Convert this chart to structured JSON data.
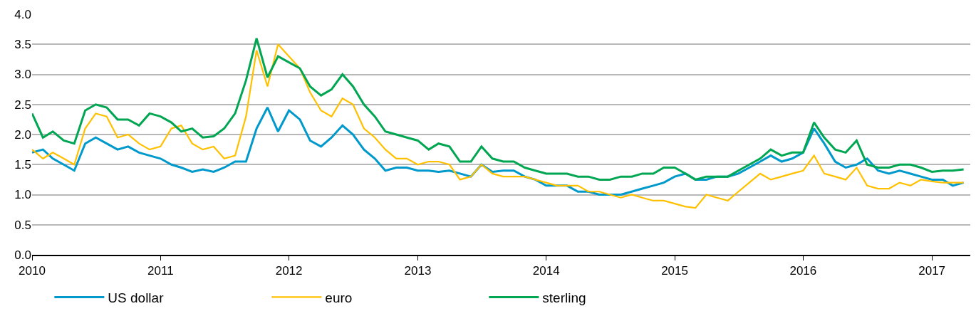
{
  "chart_data": {
    "type": "line",
    "x": [
      "2010-01",
      "2010-02",
      "2010-03",
      "2010-04",
      "2010-05",
      "2010-06",
      "2010-07",
      "2010-08",
      "2010-09",
      "2010-10",
      "2010-11",
      "2010-12",
      "2011-01",
      "2011-02",
      "2011-03",
      "2011-04",
      "2011-05",
      "2011-06",
      "2011-07",
      "2011-08",
      "2011-09",
      "2011-10",
      "2011-11",
      "2011-12",
      "2012-01",
      "2012-02",
      "2012-03",
      "2012-04",
      "2012-05",
      "2012-06",
      "2012-07",
      "2012-08",
      "2012-09",
      "2012-10",
      "2012-11",
      "2012-12",
      "2013-01",
      "2013-02",
      "2013-03",
      "2013-04",
      "2013-05",
      "2013-06",
      "2013-07",
      "2013-08",
      "2013-09",
      "2013-10",
      "2013-11",
      "2013-12",
      "2014-01",
      "2014-02",
      "2014-03",
      "2014-04",
      "2014-05",
      "2014-06",
      "2014-07",
      "2014-08",
      "2014-09",
      "2014-10",
      "2014-11",
      "2014-12",
      "2015-01",
      "2015-02",
      "2015-03",
      "2015-04",
      "2015-05",
      "2015-06",
      "2015-07",
      "2015-08",
      "2015-09",
      "2015-10",
      "2015-11",
      "2015-12",
      "2016-01",
      "2016-02",
      "2016-03",
      "2016-04",
      "2016-05",
      "2016-06",
      "2016-07",
      "2016-08",
      "2016-09",
      "2016-10",
      "2016-11",
      "2016-12",
      "2017-01",
      "2017-02",
      "2017-03",
      "2017-04"
    ],
    "series": [
      {
        "name": "US dollar",
        "color": "#0099cc",
        "values": [
          1.7,
          1.75,
          1.6,
          1.5,
          1.4,
          1.85,
          1.95,
          1.85,
          1.75,
          1.8,
          1.7,
          1.65,
          1.6,
          1.5,
          1.45,
          1.38,
          1.42,
          1.38,
          1.45,
          1.55,
          1.55,
          2.1,
          2.45,
          2.05,
          2.4,
          2.25,
          1.9,
          1.8,
          1.95,
          2.15,
          2.0,
          1.75,
          1.6,
          1.4,
          1.45,
          1.45,
          1.4,
          1.4,
          1.38,
          1.4,
          1.35,
          1.3,
          1.5,
          1.38,
          1.4,
          1.4,
          1.3,
          1.25,
          1.15,
          1.15,
          1.15,
          1.05,
          1.05,
          1.0,
          1.0,
          1.0,
          1.05,
          1.1,
          1.15,
          1.2,
          1.3,
          1.35,
          1.25,
          1.25,
          1.3,
          1.3,
          1.35,
          1.45,
          1.55,
          1.65,
          1.55,
          1.6,
          1.7,
          2.1,
          1.85,
          1.55,
          1.45,
          1.5,
          1.6,
          1.4,
          1.35,
          1.4,
          1.35,
          1.3,
          1.25,
          1.25,
          1.15,
          1.2
        ]
      },
      {
        "name": "euro",
        "color": "#ffc000",
        "values": [
          1.75,
          1.6,
          1.7,
          1.6,
          1.5,
          2.1,
          2.35,
          2.3,
          1.95,
          2.0,
          1.85,
          1.75,
          1.8,
          2.1,
          2.15,
          1.85,
          1.75,
          1.8,
          1.6,
          1.65,
          2.3,
          3.4,
          2.8,
          3.5,
          3.3,
          3.1,
          2.7,
          2.4,
          2.3,
          2.6,
          2.5,
          2.1,
          1.95,
          1.75,
          1.6,
          1.6,
          1.5,
          1.55,
          1.55,
          1.5,
          1.25,
          1.3,
          1.5,
          1.35,
          1.3,
          1.3,
          1.3,
          1.25,
          1.2,
          1.15,
          1.15,
          1.15,
          1.05,
          1.05,
          1.0,
          0.95,
          1.0,
          0.95,
          0.9,
          0.9,
          0.85,
          0.8,
          0.78,
          1.0,
          0.95,
          0.9,
          1.05,
          1.2,
          1.35,
          1.25,
          1.3,
          1.35,
          1.4,
          1.65,
          1.35,
          1.3,
          1.25,
          1.45,
          1.15,
          1.1,
          1.1,
          1.2,
          1.15,
          1.25,
          1.22,
          1.2,
          1.2,
          1.2
        ]
      },
      {
        "name": "sterling",
        "color": "#00a651",
        "values": [
          2.35,
          1.95,
          2.05,
          1.9,
          1.85,
          2.4,
          2.5,
          2.45,
          2.25,
          2.25,
          2.15,
          2.35,
          2.3,
          2.2,
          2.05,
          2.1,
          1.95,
          1.97,
          2.1,
          2.35,
          2.9,
          3.6,
          2.95,
          3.3,
          3.2,
          3.1,
          2.8,
          2.65,
          2.75,
          3.0,
          2.8,
          2.5,
          2.3,
          2.05,
          2.0,
          1.95,
          1.9,
          1.75,
          1.85,
          1.8,
          1.55,
          1.55,
          1.8,
          1.6,
          1.55,
          1.55,
          1.45,
          1.4,
          1.35,
          1.35,
          1.35,
          1.3,
          1.3,
          1.25,
          1.25,
          1.3,
          1.3,
          1.35,
          1.35,
          1.45,
          1.45,
          1.35,
          1.25,
          1.3,
          1.3,
          1.3,
          1.4,
          1.5,
          1.6,
          1.75,
          1.65,
          1.7,
          1.7,
          2.2,
          1.95,
          1.75,
          1.7,
          1.9,
          1.5,
          1.45,
          1.45,
          1.5,
          1.5,
          1.45,
          1.38,
          1.4,
          1.4,
          1.42
        ]
      }
    ],
    "xlim": [
      "2010-01-01",
      "2017-04-20"
    ],
    "xticks": [
      "2010",
      "2011",
      "2012",
      "2013",
      "2014",
      "2015",
      "2016",
      "2017"
    ],
    "ylim": [
      0,
      4
    ],
    "yticks": [
      {
        "value": 0,
        "label": "0.0"
      },
      {
        "value": 0.5,
        "label": "0.5"
      },
      {
        "value": 1,
        "label": "1.0"
      },
      {
        "value": 1.5,
        "label": "1.5"
      },
      {
        "value": 2,
        "label": "2.0"
      },
      {
        "value": 2.5,
        "label": "2.5"
      },
      {
        "value": 3,
        "label": "3.0"
      },
      {
        "value": 3.5,
        "label": "3.5"
      },
      {
        "value": 4,
        "label": "4.0"
      }
    ],
    "grid": "y",
    "legend": "bottom left",
    "marker": "none",
    "line_style": "solid"
  }
}
